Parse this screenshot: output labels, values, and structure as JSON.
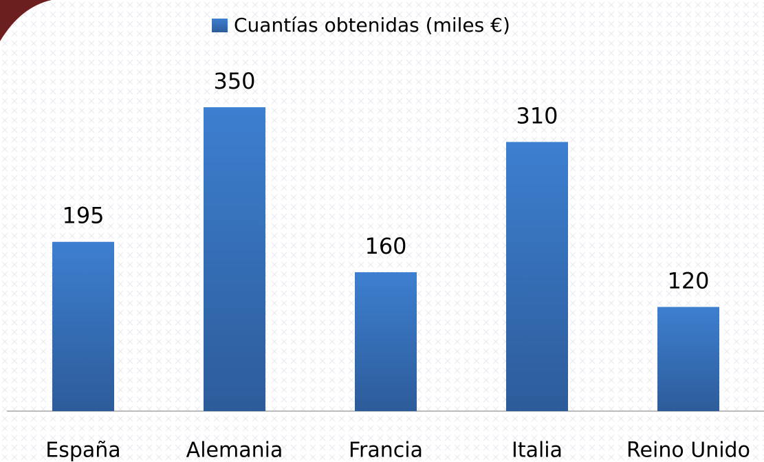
{
  "chart_data": {
    "type": "bar",
    "categories": [
      "España",
      "Alemania",
      "Francia",
      "Italia",
      "Reino Unido"
    ],
    "series": [
      {
        "name": "Cuantías obtenidas (miles €)",
        "color": "#3a78c8",
        "values": [
          195,
          350,
          160,
          310,
          120
        ]
      }
    ],
    "data_labels": true,
    "legend": "top"
  }
}
